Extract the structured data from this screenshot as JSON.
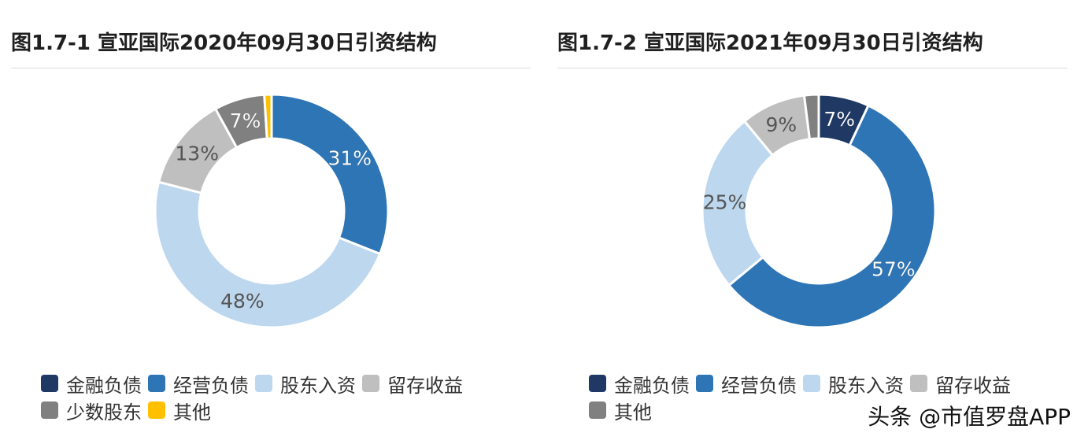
{
  "charts": [
    {
      "title": "图1.7-1 宣亚国际2020年09月30日引资结构",
      "chart_data": {
        "type": "pie",
        "title": "图1.7-1 宣亚国际2020年09月30日引资结构",
        "categories": [
          "金融负债",
          "经营负债",
          "股东入资",
          "留存收益",
          "少数股东",
          "其他"
        ],
        "values": [
          0,
          31,
          48,
          13,
          7,
          1
        ],
        "labels": [
          "",
          "31%",
          "48%",
          "13%",
          "7%",
          ""
        ],
        "colors": [
          "#1f3864",
          "#2e75b6",
          "#bdd7ee",
          "#bfbfbf",
          "#808080",
          "#ffc000"
        ],
        "donut": true,
        "legend": "bottom"
      },
      "legend_rows": [
        [
          "金融负债",
          "经营负债",
          "股东入资",
          "留存收益"
        ],
        [
          "少数股东",
          "其他"
        ]
      ]
    },
    {
      "title": "图1.7-2 宣亚国际2021年09月30日引资结构",
      "chart_data": {
        "type": "pie",
        "title": "图1.7-2 宣亚国际2021年09月30日引资结构",
        "categories": [
          "金融负债",
          "经营负债",
          "股东入资",
          "留存收益",
          "其他"
        ],
        "values": [
          7,
          57,
          25,
          9,
          2
        ],
        "labels": [
          "7%",
          "57%",
          "25%",
          "9%",
          ""
        ],
        "colors": [
          "#1f3864",
          "#2e75b6",
          "#bdd7ee",
          "#bfbfbf",
          "#808080"
        ],
        "donut": true,
        "legend": "bottom"
      },
      "legend_rows": [
        [
          "金融负债",
          "经营负债",
          "股东入资",
          "留存收益"
        ],
        [
          "其他"
        ]
      ]
    }
  ],
  "watermark": "头条 @市值罗盘APP"
}
